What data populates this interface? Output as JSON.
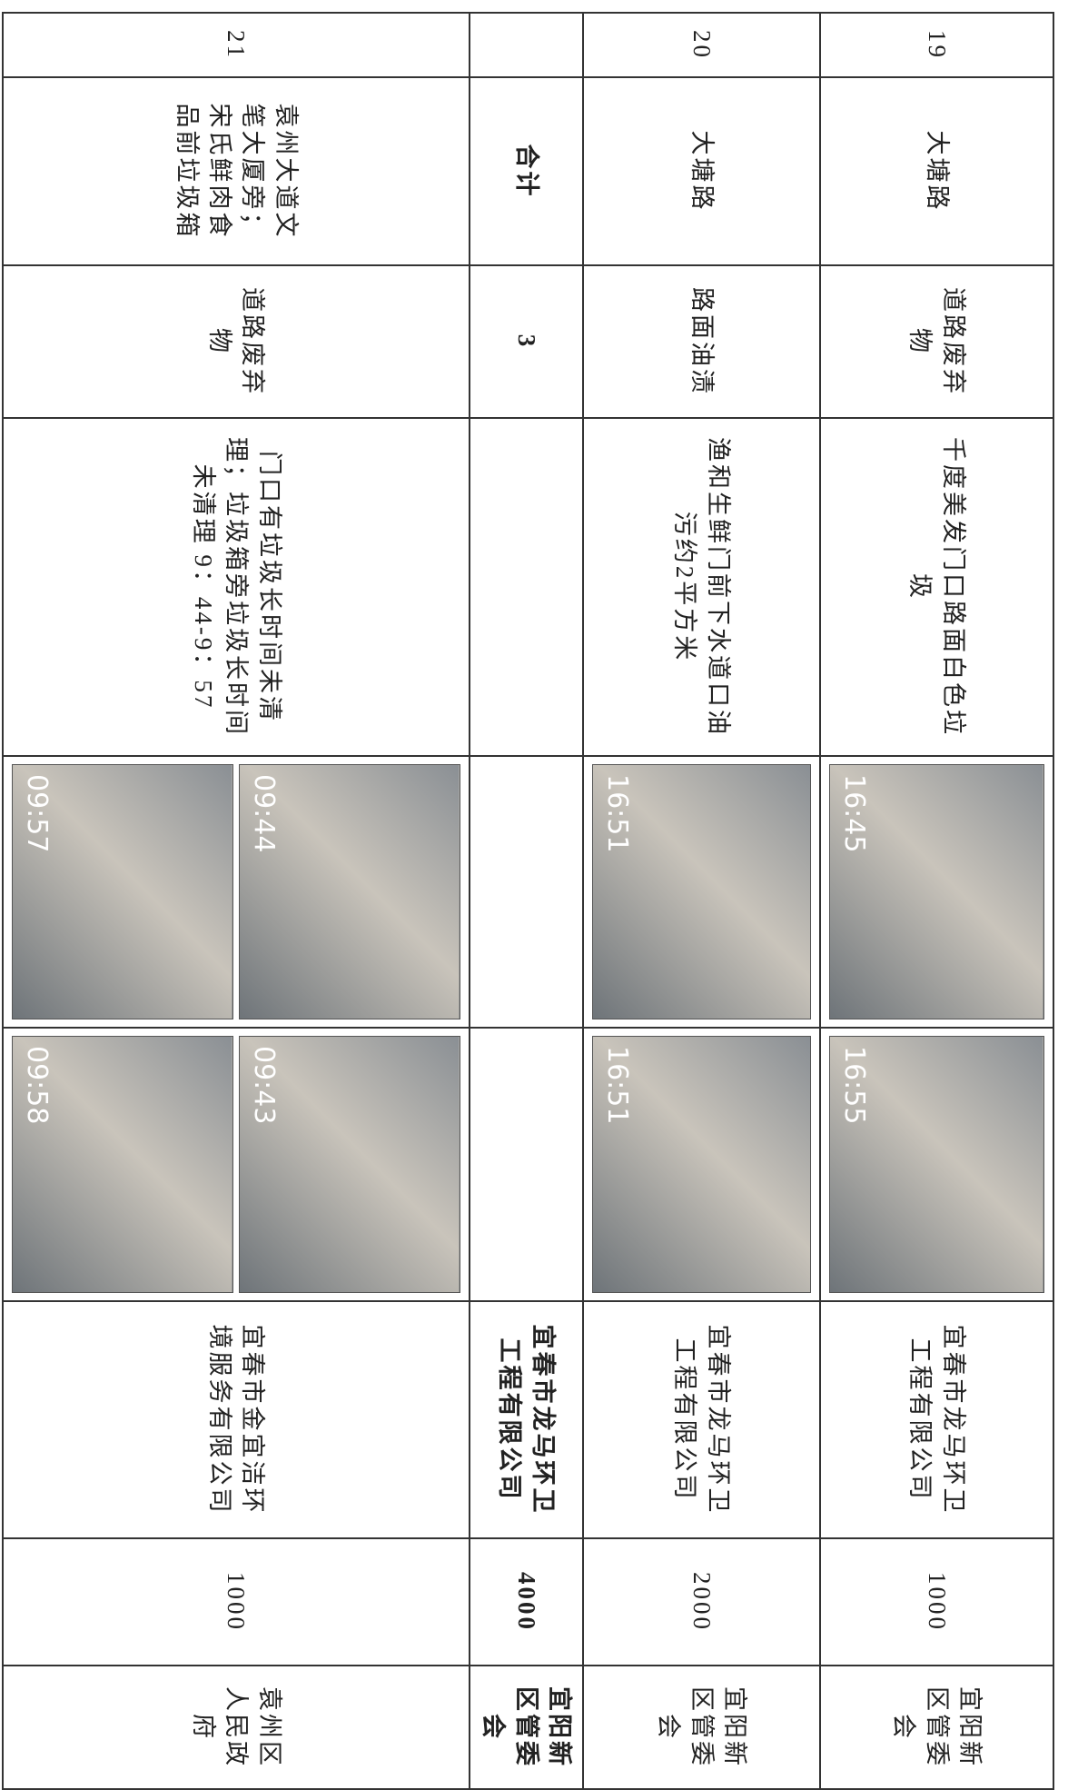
{
  "table": {
    "rows": [
      {
        "number": "19",
        "road": "大塘路",
        "type": "道路废弃物",
        "description": "千度美发门口路面白色垃圾",
        "photos": [
          [
            "16:45"
          ],
          [
            "16:55"
          ]
        ],
        "company": "宜春市龙马环卫工程有限公司",
        "amount": "1000",
        "dept": "宜阳新区管委会"
      },
      {
        "number": "20",
        "road": "大塘路",
        "type": "路面油渍",
        "description": "渔和生鲜门前下水道口油污约2平方米",
        "photos": [
          [
            "16:51"
          ],
          [
            "16:51"
          ]
        ],
        "company": "宜春市龙马环卫工程有限公司",
        "amount": "2000",
        "dept": "宜阳新区管委会"
      },
      {
        "number": "",
        "road": "合计",
        "type": "3",
        "description": "",
        "photos": [
          [],
          []
        ],
        "company": "宜春市龙马环卫工程有限公司",
        "amount": "4000",
        "dept": "宜阳新区管委会"
      },
      {
        "number": "21",
        "road": "袁州大道文笔大厦旁；宋氏鲜肉食品前垃圾箱",
        "type": "道路废弃物",
        "description": "门口有垃圾长时间未清理；垃圾箱旁垃圾长时间未清理 9：44-9：57",
        "photos": [
          [
            "09:44",
            "09:57"
          ],
          [
            "09:43",
            "09:58"
          ]
        ],
        "company": "宜春市金宜洁环境服务有限公司",
        "amount": "1000",
        "dept": "袁州区人民政府"
      }
    ]
  }
}
